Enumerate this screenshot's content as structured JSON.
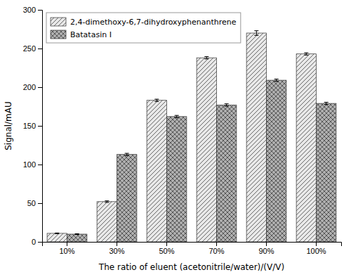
{
  "chart_data": {
    "type": "bar",
    "xlabel": "The ratio of eluent (acetonitrile/water)/(V/V)",
    "ylabel": "Signal/mAU",
    "categories": [
      "10%",
      "30%",
      "50%",
      "70%",
      "90%",
      "100%"
    ],
    "series": [
      {
        "name": "2,4-dimethoxy-6,7-dihydroxyphenanthrene",
        "color": "#e8e8e8",
        "values": [
          11,
          52,
          183,
          238,
          270,
          243
        ],
        "errors": [
          0.5,
          1.0,
          1.5,
          1.5,
          3.0,
          1.5
        ]
      },
      {
        "name": "Batatasin I",
        "color": "#b0b0b0",
        "values": [
          10,
          113,
          162,
          177,
          209,
          179
        ],
        "errors": [
          0.5,
          1.5,
          1.5,
          1.5,
          1.5,
          1.5
        ]
      }
    ],
    "ylim": [
      0,
      300
    ],
    "yticks": [
      0,
      50,
      100,
      150,
      200,
      250,
      300
    ],
    "grid": false,
    "legend": "top-left"
  }
}
